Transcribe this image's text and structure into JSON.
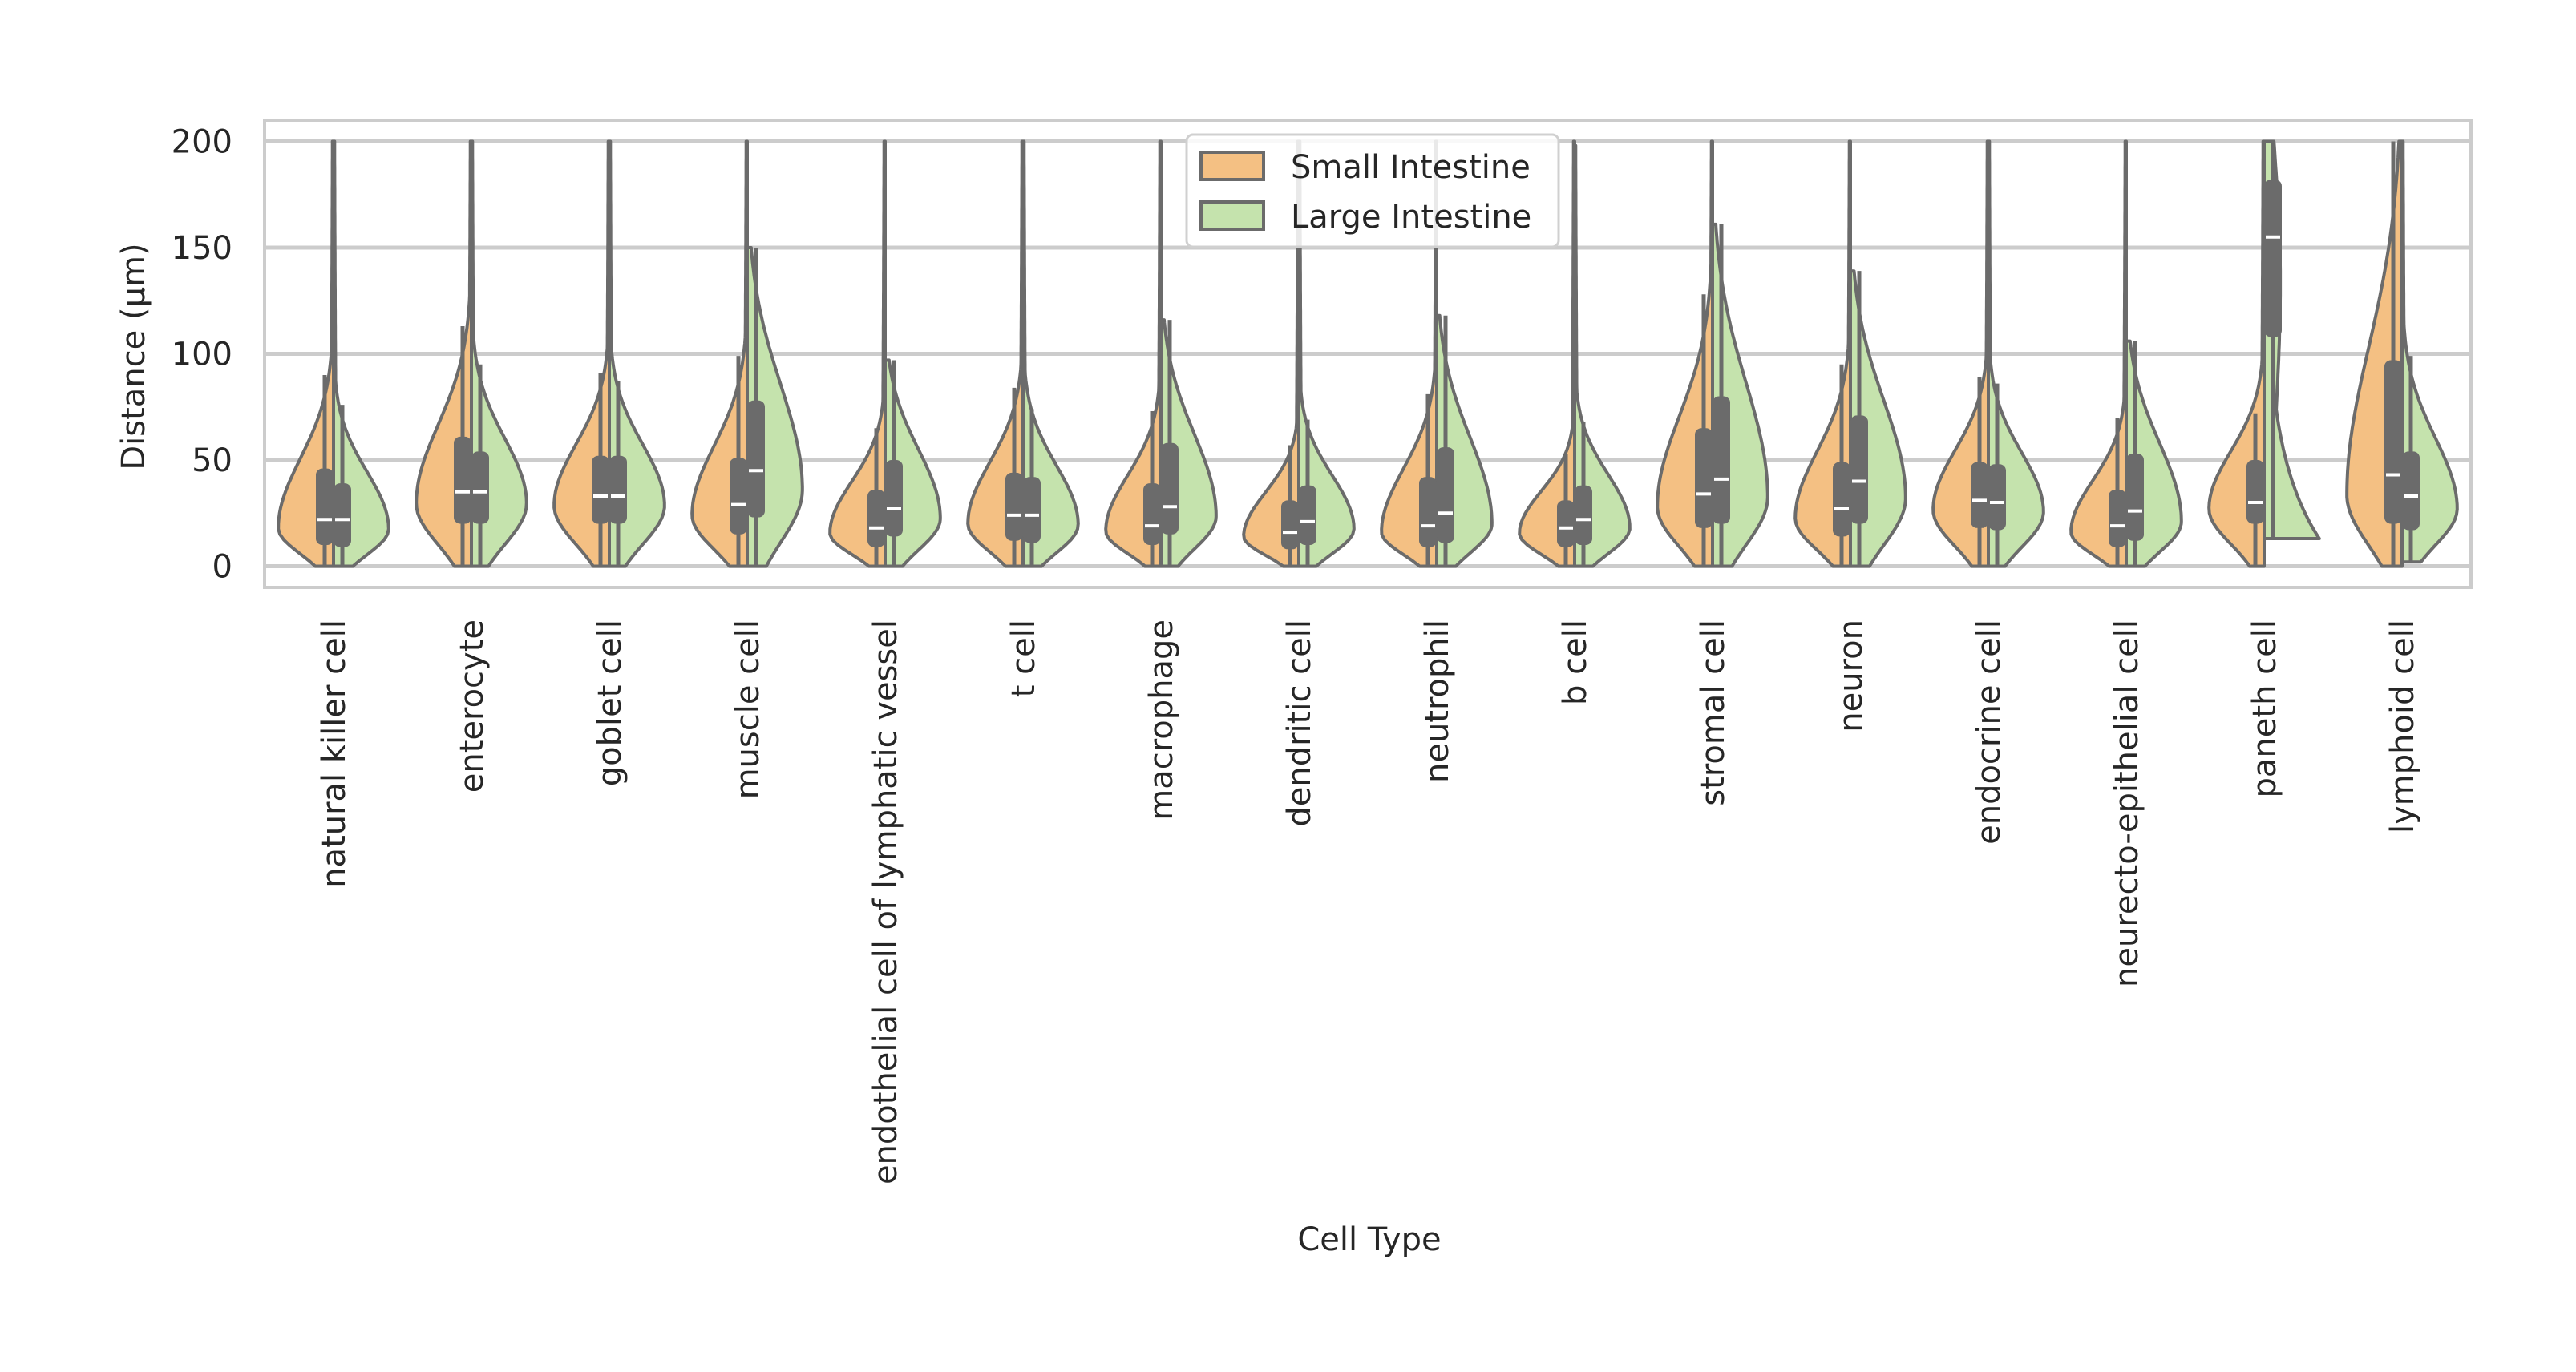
{
  "chart_data": {
    "type": "violin",
    "split": true,
    "xlabel": "Cell Type",
    "ylabel": "Distance (µm)",
    "ylim": [
      -10,
      210
    ],
    "yticks": [
      0,
      50,
      100,
      150,
      200
    ],
    "grid": true,
    "legend": {
      "placement": "top-center",
      "entries": [
        {
          "name": "Small Intestine",
          "color": "#f4c083"
        },
        {
          "name": "Large Intestine",
          "color": "#c5e3ad"
        }
      ]
    },
    "categories": [
      "natural killer cell",
      "enterocyte",
      "goblet cell",
      "muscle cell",
      "endothelial cell of lymphatic vessel",
      "t cell",
      "macrophage",
      "dendritic cell",
      "neutrophil",
      "b cell",
      "stromal cell",
      "neuron",
      "endocrine cell",
      "neurecto-epithelial cell",
      "paneth cell",
      "lymphoid cell"
    ],
    "series": [
      {
        "name": "Small Intestine",
        "color": "#f4c083",
        "median": [
          22,
          35,
          33,
          29,
          18,
          24,
          19,
          16,
          19,
          18,
          34,
          27,
          31,
          19,
          30,
          43
        ],
        "q1": [
          10,
          20,
          20,
          15,
          9,
          12,
          10,
          8,
          9,
          9,
          18,
          14,
          18,
          9,
          20,
          20
        ],
        "q3": [
          46,
          61,
          52,
          51,
          36,
          44,
          39,
          31,
          42,
          31,
          65,
          49,
          49,
          36,
          50,
          97
        ],
        "min": [
          0,
          0,
          0,
          0,
          0,
          0,
          0,
          0,
          0,
          0,
          0,
          0,
          0,
          0,
          0,
          0
        ],
        "max": [
          200,
          200,
          200,
          200,
          200,
          200,
          200,
          200,
          200,
          200,
          200,
          200,
          200,
          200,
          200,
          200
        ],
        "whisker_top": [
          90,
          113,
          91,
          99,
          65,
          84,
          73,
          57,
          81,
          53,
          128,
          95,
          89,
          70,
          72,
          200
        ]
      },
      {
        "name": "Large Intestine",
        "color": "#c5e3ad",
        "median": [
          22,
          35,
          33,
          45,
          27,
          24,
          28,
          21,
          25,
          22,
          41,
          40,
          30,
          26,
          155,
          33
        ],
        "q1": [
          9,
          20,
          20,
          23,
          14,
          11,
          15,
          10,
          11,
          10,
          20,
          20,
          17,
          12,
          108,
          17
        ],
        "q3": [
          39,
          54,
          52,
          78,
          50,
          42,
          58,
          38,
          56,
          38,
          80,
          71,
          48,
          53,
          182,
          54
        ],
        "min": [
          0,
          0,
          0,
          0,
          0,
          0,
          0,
          0,
          0,
          0,
          0,
          0,
          0,
          0,
          13,
          2
        ],
        "max": [
          200,
          200,
          200,
          150,
          97,
          200,
          116,
          200,
          118,
          198,
          161,
          139,
          200,
          106,
          200,
          200
        ],
        "whisker_top": [
          76,
          95,
          87,
          150,
          97,
          74,
          116,
          69,
          118,
          68,
          161,
          139,
          86,
          106,
          200,
          99
        ]
      }
    ]
  }
}
